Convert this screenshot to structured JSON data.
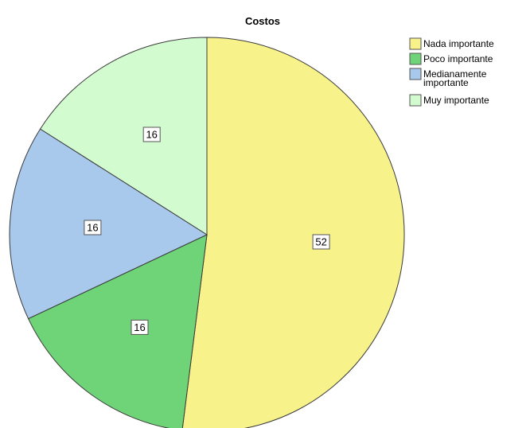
{
  "chart_data": {
    "type": "pie",
    "title": "Costos",
    "categories": [
      "Nada importante",
      "Poco importante",
      "Medianamente importante",
      "Muy importante"
    ],
    "legend_lines": [
      [
        "Nada importante"
      ],
      [
        "Poco importante"
      ],
      [
        "Medianamente",
        "importante"
      ],
      [
        "Muy importante"
      ]
    ],
    "values": [
      52,
      16,
      16,
      16
    ],
    "data_labels": [
      "52",
      "16",
      "16",
      "16"
    ],
    "colors": [
      "#f7f28a",
      "#6fd478",
      "#a8c8ec",
      "#d3fbd0"
    ],
    "legend_position": "top-right",
    "start_angle_deg": 0,
    "direction": "clockwise"
  }
}
